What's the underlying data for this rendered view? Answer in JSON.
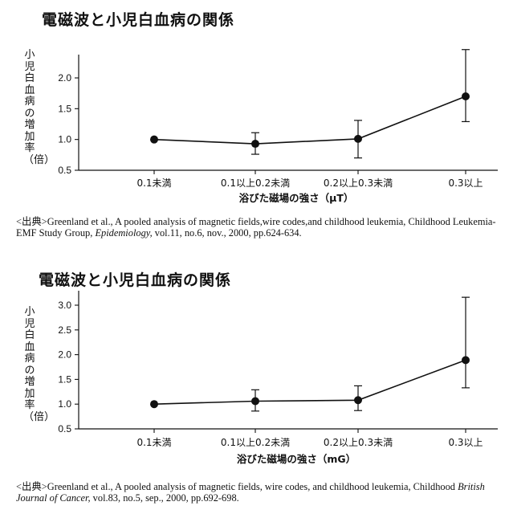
{
  "charts_meta": [
    {
      "title": "電磁波と小児白血病の関係",
      "ylabel_vertical": "小児白血病の増加率（倍）",
      "source": {
        "prefix": "<出典>Greenland et al., A pooled analysis of magnetic fields,wire codes,and childhood leukemia, Childhood Leukemia-EMF Study Group, ",
        "journal": "Epidemiology,",
        "suffix": " vol.11, no.6, nov., 2000, pp.624-634."
      }
    },
    {
      "title": "電磁波と小児白血病の関係",
      "ylabel_vertical": "小児白血病の増加率（倍）",
      "source": {
        "prefix": "<出典>Greenland et al., A pooled analysis of magnetic fields, wire codes, and childhood leukemia, Childhood ",
        "journal": "British Journal of Cancer,",
        "suffix": " vol.83, no.5, sep., 2000, pp.692-698."
      }
    }
  ],
  "chart_data": [
    {
      "type": "line",
      "title": "電磁波と小児白血病の関係",
      "xlabel": "浴びた磁場の強さ（μT）",
      "ylabel": "小児白血病の増加率（倍）",
      "categories": [
        "0.1未満",
        "0.1以上0.2未満",
        "0.2以上0.3未満",
        "0.3以上"
      ],
      "values": [
        1.0,
        0.93,
        1.01,
        1.7
      ],
      "error_low": [
        null,
        0.76,
        0.7,
        1.29
      ],
      "error_high": [
        null,
        1.11,
        1.31,
        2.46
      ],
      "yticks": [
        "0.5",
        "1.0",
        "1.5",
        "2.0"
      ],
      "ylim": [
        0.5,
        2.5
      ]
    },
    {
      "type": "line",
      "title": "電磁波と小児白血病の関係",
      "xlabel": "浴びた磁場の強さ（mG）",
      "ylabel": "小児白血病の増加率（倍）",
      "categories": [
        "0.1未満",
        "0.1以上0.2未満",
        "0.2以上0.3未満",
        "0.3以上"
      ],
      "values": [
        1.0,
        1.06,
        1.08,
        1.89
      ],
      "error_low": [
        null,
        0.86,
        0.87,
        1.33
      ],
      "error_high": [
        null,
        1.29,
        1.37,
        3.16
      ],
      "yticks": [
        "0.5",
        "1.0",
        "1.5",
        "2.0",
        "2.5",
        "3.0"
      ],
      "ylim": [
        0.5,
        3.2
      ]
    }
  ]
}
